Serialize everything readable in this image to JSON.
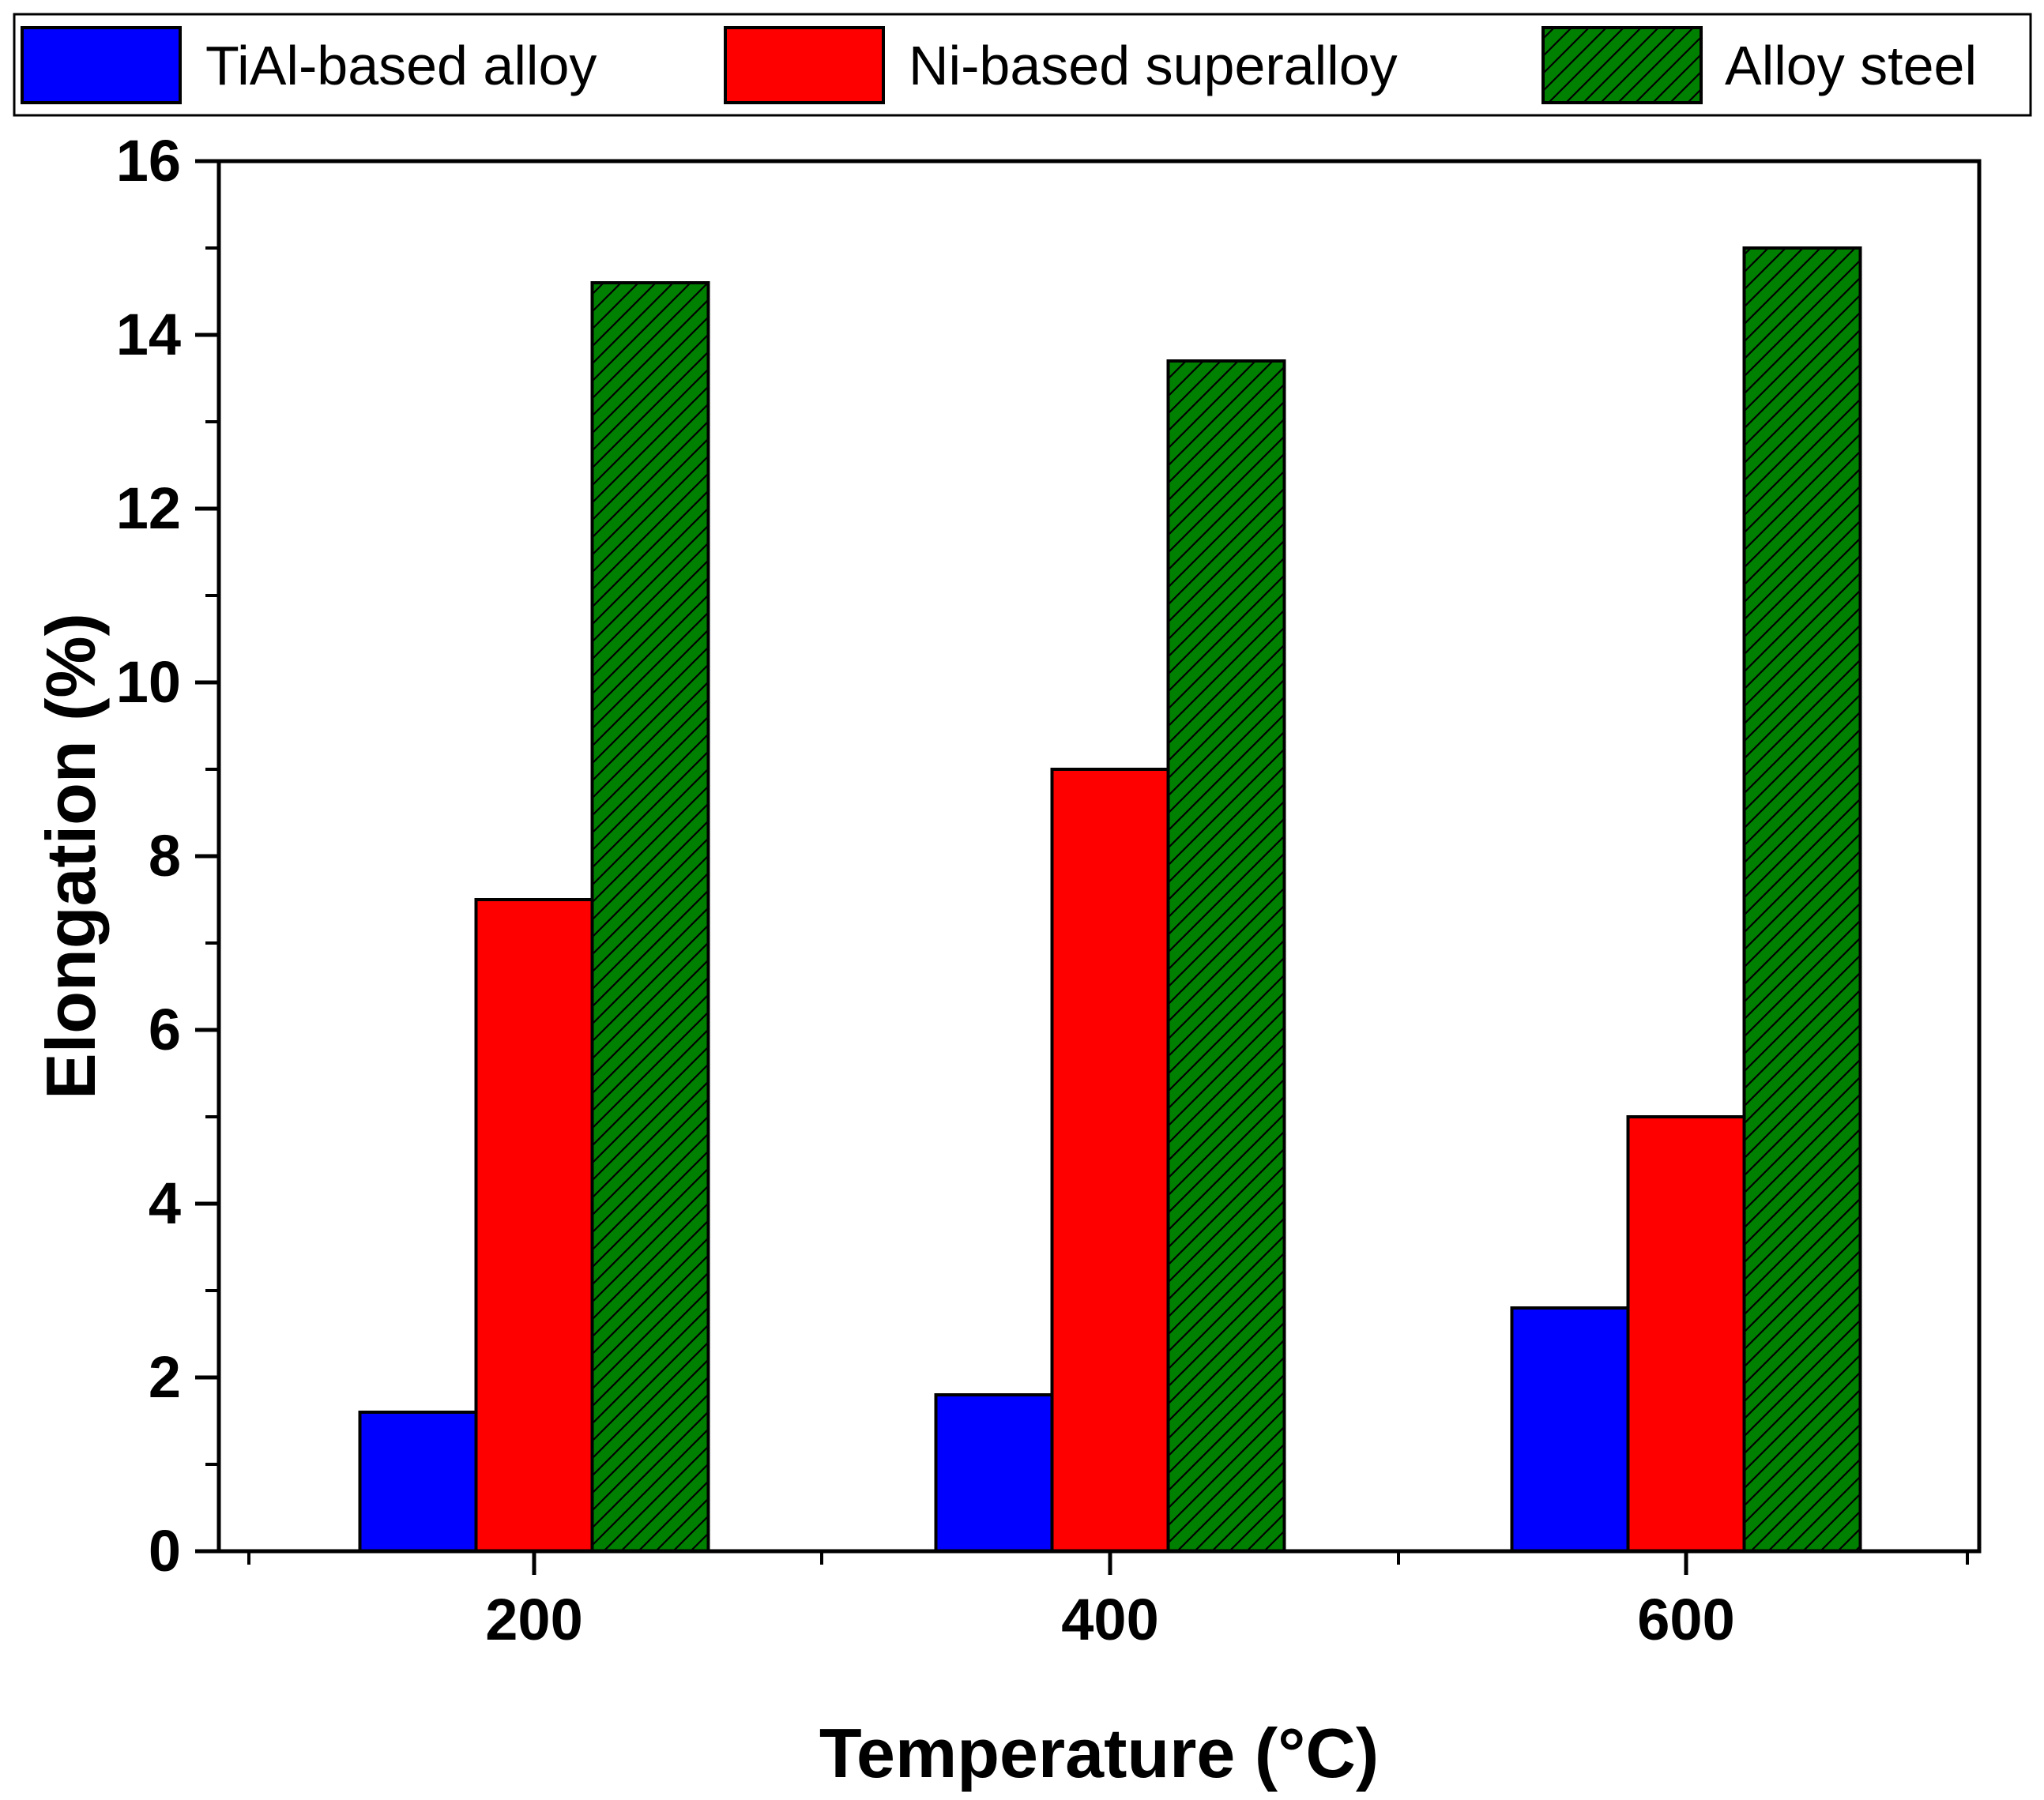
{
  "chart_data": {
    "type": "bar",
    "xlabel": "Temperature (°C)",
    "ylabel": "Elongation (%)",
    "categories": [
      "200",
      "400",
      "600"
    ],
    "ylim": [
      0,
      16
    ],
    "yticks": [
      "0",
      "2",
      "4",
      "6",
      "8",
      "10",
      "12",
      "14",
      "16"
    ],
    "legend_position": "top",
    "grid": false,
    "series": [
      {
        "name": "TiAl-based alloy",
        "color": "#0000ff",
        "pattern": "solid",
        "values": [
          1.6,
          1.8,
          2.8
        ]
      },
      {
        "name": "Ni-based superalloy",
        "color": "#ff0000",
        "pattern": "solid",
        "values": [
          7.5,
          9.0,
          5.0
        ]
      },
      {
        "name": "Alloy steel",
        "color": "#008000",
        "pattern": "diagonal-hatch",
        "values": [
          14.6,
          13.7,
          15.0
        ]
      }
    ]
  }
}
